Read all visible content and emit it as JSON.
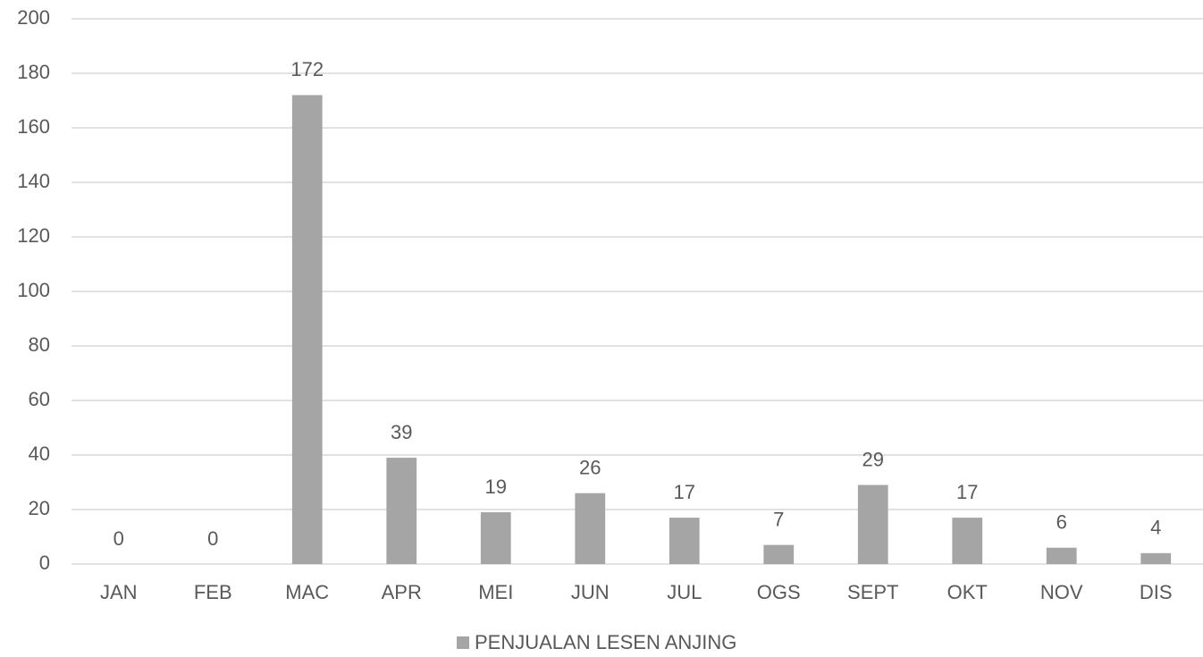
{
  "chart_data": {
    "type": "bar",
    "categories": [
      "JAN",
      "FEB",
      "MAC",
      "APR",
      "MEI",
      "JUN",
      "JUL",
      "OGS",
      "SEPT",
      "OKT",
      "NOV",
      "DIS"
    ],
    "series": [
      {
        "name": "PENJUALAN LESEN ANJING",
        "color": "#a5a5a5",
        "values": [
          0,
          0,
          172,
          39,
          19,
          26,
          17,
          7,
          29,
          17,
          6,
          4
        ]
      }
    ],
    "ylim": [
      0,
      200
    ],
    "yticks": [
      0,
      20,
      40,
      60,
      80,
      100,
      120,
      140,
      160,
      180,
      200
    ],
    "grid": true,
    "data_labels": true,
    "legend": "bottom"
  }
}
